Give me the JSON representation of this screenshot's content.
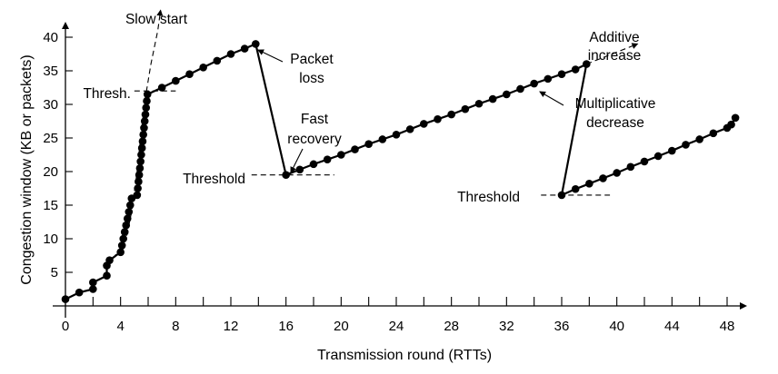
{
  "chart_data": {
    "type": "line",
    "xlabel": "Transmission round (RTTs)",
    "ylabel": "Congestion window (KB or packets)",
    "xlim": [
      0,
      49
    ],
    "ylim": [
      0,
      43
    ],
    "x_ticks": [
      0,
      4,
      8,
      12,
      16,
      20,
      24,
      28,
      32,
      36,
      40,
      44,
      48
    ],
    "y_ticks": [
      5,
      10,
      15,
      20,
      25,
      30,
      35,
      40
    ],
    "series": [
      {
        "points": [
          [
            0,
            1
          ],
          [
            1,
            2
          ],
          [
            2,
            2.5
          ],
          [
            2,
            3.5
          ],
          [
            3,
            4.5
          ],
          [
            3,
            6
          ],
          [
            3.2,
            6.8
          ],
          [
            4,
            8
          ],
          [
            4.1,
            9
          ],
          [
            4.2,
            10
          ],
          [
            4.3,
            11
          ],
          [
            4.4,
            12
          ],
          [
            4.5,
            13
          ],
          [
            4.6,
            14
          ],
          [
            4.7,
            15
          ],
          [
            4.8,
            16
          ],
          [
            5.2,
            16.5
          ],
          [
            5.25,
            17.5
          ],
          [
            5.3,
            18.5
          ],
          [
            5.35,
            19.5
          ],
          [
            5.4,
            20.5
          ],
          [
            5.45,
            21.5
          ],
          [
            5.5,
            22.5
          ],
          [
            5.55,
            23.5
          ],
          [
            5.6,
            24.5
          ],
          [
            5.65,
            25.5
          ],
          [
            5.7,
            26.5
          ],
          [
            5.75,
            27.5
          ],
          [
            5.8,
            28.5
          ],
          [
            5.85,
            29.5
          ],
          [
            5.9,
            30.5
          ],
          [
            5.95,
            31.5
          ],
          [
            7,
            32.5
          ],
          [
            8,
            33.5
          ],
          [
            9,
            34.5
          ],
          [
            10,
            35.5
          ],
          [
            11,
            36.5
          ],
          [
            12,
            37.5
          ],
          [
            13,
            38.3
          ],
          [
            13.8,
            39
          ],
          [
            16,
            19.5
          ],
          [
            17,
            20.3
          ],
          [
            18,
            21.1
          ],
          [
            19,
            21.8
          ],
          [
            20,
            22.5
          ],
          [
            21,
            23.3
          ],
          [
            22,
            24.1
          ],
          [
            23,
            24.8
          ],
          [
            24,
            25.5
          ],
          [
            25,
            26.3
          ],
          [
            26,
            27.1
          ],
          [
            27,
            27.8
          ],
          [
            28,
            28.5
          ],
          [
            29,
            29.3
          ],
          [
            30,
            30.1
          ],
          [
            31,
            30.8
          ],
          [
            32,
            31.5
          ],
          [
            33,
            32.3
          ],
          [
            34,
            33.1
          ],
          [
            35,
            33.8
          ],
          [
            36,
            34.5
          ],
          [
            37,
            35.2
          ],
          [
            37.8,
            36
          ],
          [
            36,
            16.5
          ],
          [
            37,
            17.4
          ],
          [
            38,
            18.2
          ],
          [
            39,
            19
          ],
          [
            40,
            19.8
          ],
          [
            41,
            20.7
          ],
          [
            42,
            21.5
          ],
          [
            43,
            22.3
          ],
          [
            44,
            23.1
          ],
          [
            45,
            24
          ],
          [
            46,
            24.8
          ],
          [
            47,
            25.7
          ],
          [
            48,
            26.5
          ],
          [
            48.3,
            27
          ],
          [
            48.6,
            28
          ]
        ]
      }
    ],
    "slow_start_curve": [
      [
        3,
        6
      ],
      [
        3.8,
        8
      ],
      [
        4.4,
        10
      ],
      [
        4.8,
        14
      ],
      [
        5.2,
        20
      ],
      [
        5.5,
        26
      ],
      [
        5.8,
        31
      ],
      [
        6.2,
        36
      ],
      [
        6.7,
        41
      ],
      [
        6.9,
        44
      ]
    ],
    "thresholds": [
      {
        "label": "Thresh.",
        "x_start": 5,
        "x_end": 8,
        "y": 32
      },
      {
        "label": "Threshold",
        "x_start": 13.5,
        "x_end": 19.5,
        "y": 19.5
      },
      {
        "label": "Threshold",
        "x_start": 34.5,
        "x_end": 39.5,
        "y": 16.5
      }
    ],
    "additive_increase_extension": [
      [
        37.8,
        36
      ],
      [
        41.5,
        39
      ]
    ],
    "annotations": [
      {
        "text": "Slow start"
      },
      {
        "text": "Packet"
      },
      {
        "text": "loss"
      },
      {
        "text": "Fast"
      },
      {
        "text": "recovery"
      },
      {
        "text": "Additive"
      },
      {
        "text": "increase"
      },
      {
        "text": "Multiplicative"
      },
      {
        "text": "decrease"
      },
      {
        "text": "Thresh."
      },
      {
        "text": "Threshold"
      },
      {
        "text": "Threshold"
      }
    ],
    "grid": false,
    "legend": "none"
  }
}
